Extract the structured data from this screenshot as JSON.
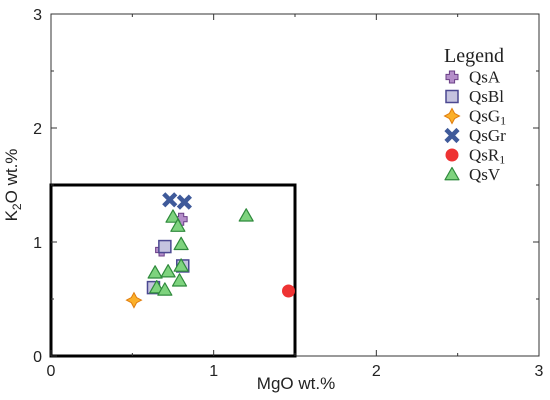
{
  "chart_data": {
    "type": "scatter",
    "title": "",
    "xlabel": "MgO wt.%",
    "ylabel_main": "K",
    "ylabel_sub": "2",
    "ylabel_rest": "O wt.%",
    "xlim": [
      0,
      3
    ],
    "ylim": [
      0,
      3
    ],
    "x_ticks": [
      "0",
      "1",
      "2",
      "3"
    ],
    "y_ticks": [
      "0",
      "1",
      "2",
      "3"
    ],
    "grid": false,
    "legend": {
      "title": "Legend",
      "placement": "top-right"
    },
    "highlight_box": {
      "x": [
        0,
        1.5
      ],
      "y": [
        0,
        1.5
      ]
    },
    "series": [
      {
        "name": "QsA",
        "marker": "plus",
        "color": "#b48ec9",
        "stroke": "#6a3f86",
        "points": [
          [
            0.68,
            0.93
          ],
          [
            0.8,
            1.2
          ]
        ]
      },
      {
        "name": "QsBl",
        "marker": "square",
        "color": "#c5c3df",
        "stroke": "#4b4891",
        "points": [
          [
            0.7,
            0.96
          ],
          [
            0.81,
            0.79
          ],
          [
            0.63,
            0.6
          ]
        ]
      },
      {
        "name": "QsG1",
        "marker": "diamond-star",
        "color": "#fbb02a",
        "stroke": "#e07d0f",
        "points": [
          [
            0.51,
            0.49
          ]
        ]
      },
      {
        "name": "QsGr",
        "marker": "x",
        "color": "#3f5a9a",
        "stroke": "#3f5a9a",
        "points": [
          [
            0.73,
            1.37
          ],
          [
            0.82,
            1.35
          ]
        ]
      },
      {
        "name": "QsR1",
        "marker": "circle",
        "color": "#ee3333",
        "stroke": "#ee3333",
        "points": [
          [
            1.46,
            0.57
          ]
        ]
      },
      {
        "name": "QsV",
        "marker": "triangle",
        "color": "#7ed37e",
        "stroke": "#2f8a3c",
        "points": [
          [
            0.75,
            1.22
          ],
          [
            0.78,
            1.14
          ],
          [
            0.8,
            0.98
          ],
          [
            0.8,
            0.79
          ],
          [
            0.64,
            0.73
          ],
          [
            0.72,
            0.74
          ],
          [
            0.79,
            0.66
          ],
          [
            0.65,
            0.6
          ],
          [
            0.7,
            0.58
          ],
          [
            1.2,
            1.23
          ]
        ]
      }
    ]
  }
}
